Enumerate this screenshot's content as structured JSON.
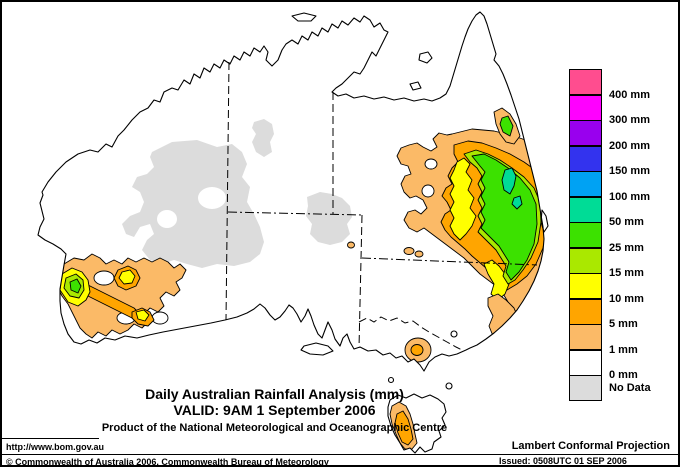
{
  "title": {
    "line1": "Daily Australian Rainfall Analysis (mm)",
    "line2": "VALID: 9AM  1 September 2006",
    "line3": "Product of the National Meteorological and Oceanographic Centre"
  },
  "legend": {
    "entries": [
      {
        "color": "#FF4D8F",
        "label": "400 mm"
      },
      {
        "color": "#FF00FF",
        "label": "300 mm"
      },
      {
        "color": "#9900EE",
        "label": "200 mm"
      },
      {
        "color": "#3333EE",
        "label": "150 mm"
      },
      {
        "color": "#00A2F3",
        "label": "100 mm"
      },
      {
        "color": "#00DC96",
        "label": "50 mm"
      },
      {
        "color": "#3CE100",
        "label": "25 mm"
      },
      {
        "color": "#AAE800",
        "label": "15 mm"
      },
      {
        "color": "#FFFF00",
        "label": "10 mm"
      },
      {
        "color": "#FFA500",
        "label": "5 mm"
      },
      {
        "color": "#FBBA67",
        "label": "1 mm"
      },
      {
        "color": "#FFFFFF",
        "label": "0 mm"
      },
      {
        "color": "#DCDCDC",
        "label": "No Data"
      }
    ]
  },
  "palette": {
    "nodata": "#DCDCDC",
    "tan": "#FBBA67",
    "orange": "#FFA500",
    "yellow": "#FFFF00",
    "yg": "#AAE800",
    "green": "#3CE100",
    "teal": "#00DC96"
  },
  "footer": {
    "url": "http://www.bom.gov.au",
    "copyright": "© Commonwealth of Australia 2006, Commonwealth Bureau of Meteorology",
    "projection": "Lambert Conformal Projection",
    "issued": "Issued: 0508UTC 01 SEP 2006"
  }
}
